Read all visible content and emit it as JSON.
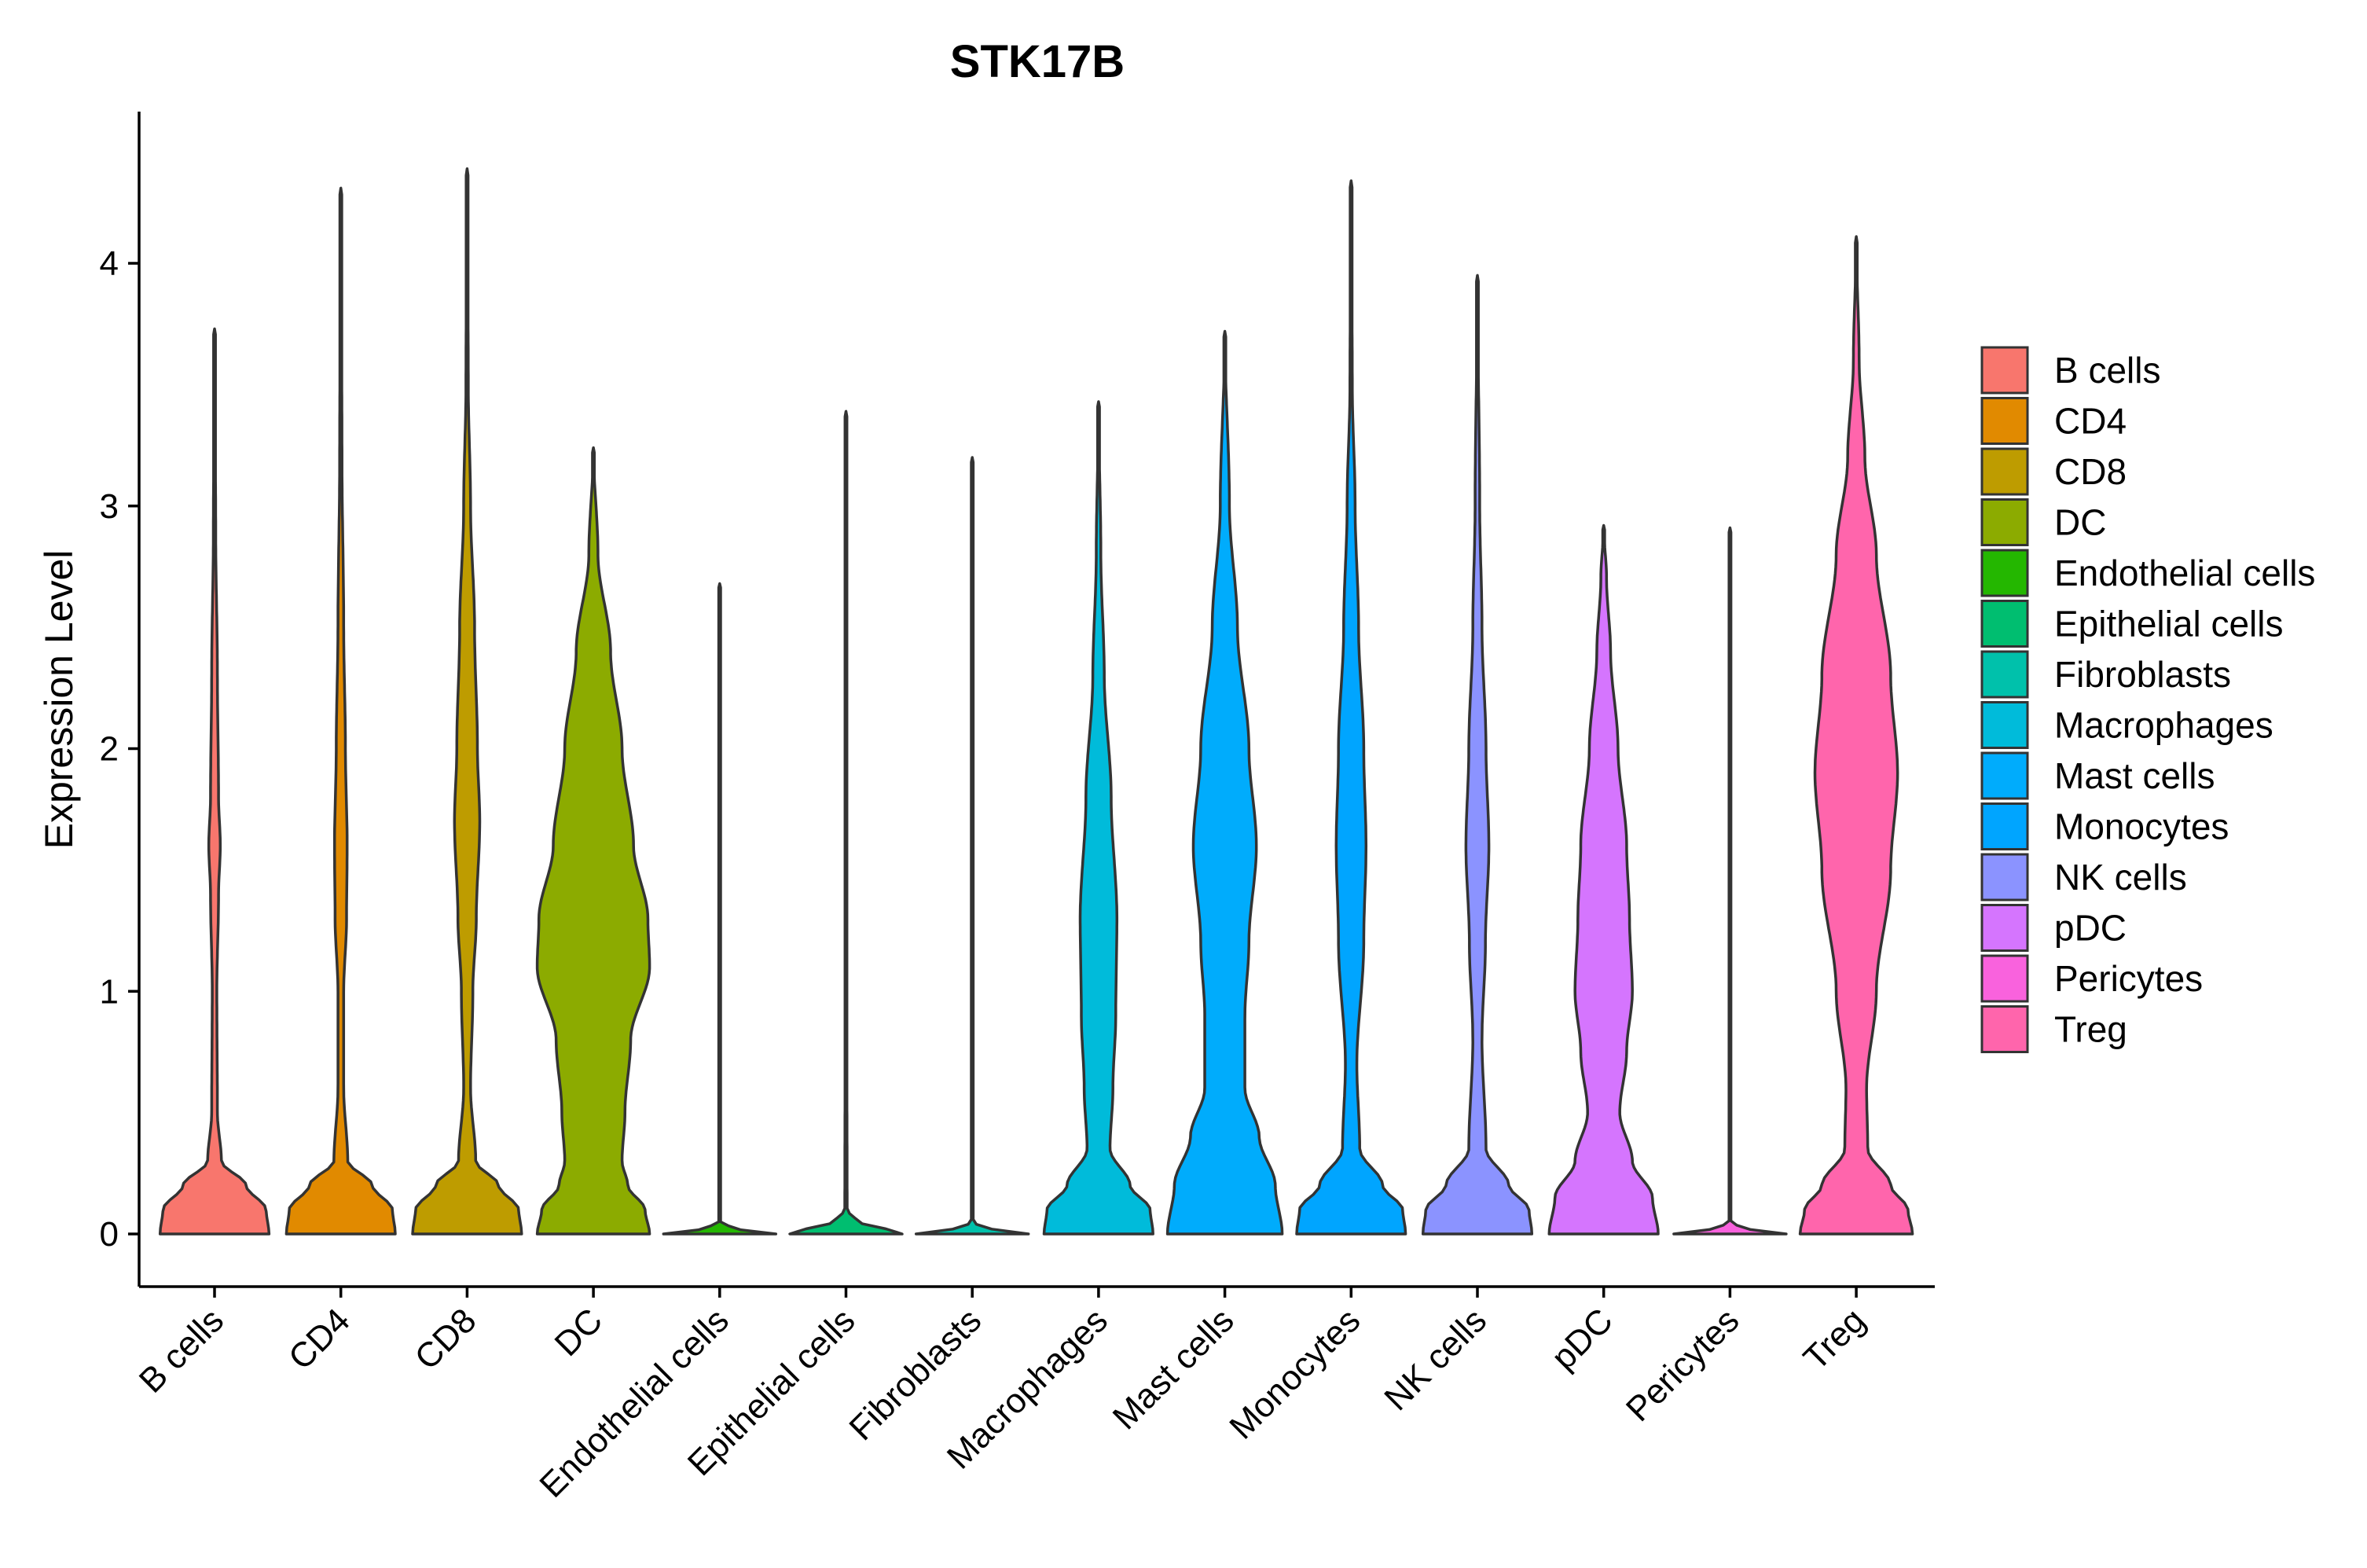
{
  "chart_data": {
    "type": "violin",
    "title": "STK17B",
    "xlabel": "",
    "ylabel": "Expression Level",
    "ylim": [
      -0.22,
      4.6
    ],
    "yticks": [
      0,
      1,
      2,
      3,
      4
    ],
    "categories": [
      "B cells",
      "CD4",
      "CD8",
      "DC",
      "Endothelial cells",
      "Epithelial cells",
      "Fibroblasts",
      "Macrophages",
      "Mast cells",
      "Monocytes",
      "NK cells",
      "pDC",
      "Pericytes",
      "Treg"
    ],
    "colors": [
      "#F8766D",
      "#E18A00",
      "#BE9C00",
      "#8CAB00",
      "#24B700",
      "#00BE70",
      "#00C1AB",
      "#00BBDA",
      "#00ACFC",
      "#00A5FF",
      "#8B93FF",
      "#D575FE",
      "#F962DD",
      "#FF65AC"
    ],
    "legend_position": "right",
    "series": [
      {
        "name": "B cells",
        "max": 3.73,
        "profile": [
          [
            0,
            0.95
          ],
          [
            0.1,
            0.9
          ],
          [
            0.2,
            0.55
          ],
          [
            0.3,
            0.12
          ],
          [
            0.5,
            0.05
          ],
          [
            1.0,
            0.04
          ],
          [
            1.4,
            0.07
          ],
          [
            1.6,
            0.1
          ],
          [
            1.8,
            0.07
          ],
          [
            2.3,
            0.05
          ],
          [
            2.9,
            0.02
          ],
          [
            3.73,
            0
          ]
        ]
      },
      {
        "name": "CD4",
        "max": 4.31,
        "profile": [
          [
            0,
            0.95
          ],
          [
            0.1,
            0.9
          ],
          [
            0.2,
            0.55
          ],
          [
            0.3,
            0.12
          ],
          [
            0.6,
            0.05
          ],
          [
            1.0,
            0.05
          ],
          [
            1.3,
            0.1
          ],
          [
            1.6,
            0.11
          ],
          [
            2.0,
            0.08
          ],
          [
            2.5,
            0.05
          ],
          [
            3.2,
            0.02
          ],
          [
            4.31,
            0
          ]
        ]
      },
      {
        "name": "CD8",
        "max": 4.39,
        "profile": [
          [
            0,
            0.95
          ],
          [
            0.1,
            0.9
          ],
          [
            0.2,
            0.55
          ],
          [
            0.3,
            0.15
          ],
          [
            0.6,
            0.06
          ],
          [
            1.0,
            0.1
          ],
          [
            1.3,
            0.16
          ],
          [
            1.7,
            0.22
          ],
          [
            2.0,
            0.18
          ],
          [
            2.5,
            0.13
          ],
          [
            3.0,
            0.06
          ],
          [
            3.5,
            0.02
          ],
          [
            4.39,
            0
          ]
        ]
      },
      {
        "name": "DC",
        "max": 3.24,
        "profile": [
          [
            0,
            0.98
          ],
          [
            0.1,
            0.9
          ],
          [
            0.2,
            0.6
          ],
          [
            0.3,
            0.5
          ],
          [
            0.5,
            0.55
          ],
          [
            0.8,
            0.65
          ],
          [
            1.1,
            0.98
          ],
          [
            1.3,
            0.95
          ],
          [
            1.6,
            0.7
          ],
          [
            2.0,
            0.5
          ],
          [
            2.4,
            0.3
          ],
          [
            2.8,
            0.08
          ],
          [
            3.24,
            0
          ]
        ]
      },
      {
        "name": "Endothelial cells",
        "max": 2.68,
        "profile": [
          [
            0,
            0.98
          ],
          [
            0.01,
            0.4
          ],
          [
            0.05,
            0.01
          ],
          [
            2.68,
            0
          ]
        ]
      },
      {
        "name": "Epithelial cells",
        "max": 3.39,
        "profile": [
          [
            0,
            0.98
          ],
          [
            0.02,
            0.7
          ],
          [
            0.05,
            0.2
          ],
          [
            0.1,
            0.02
          ],
          [
            1.2,
            0.01
          ],
          [
            3.39,
            0
          ]
        ]
      },
      {
        "name": "Fibroblasts",
        "max": 3.2,
        "profile": [
          [
            0,
            0.98
          ],
          [
            0.01,
            0.4
          ],
          [
            0.05,
            0.01
          ],
          [
            3.2,
            0
          ]
        ]
      },
      {
        "name": "Macrophages",
        "max": 3.43,
        "profile": [
          [
            0,
            0.95
          ],
          [
            0.1,
            0.9
          ],
          [
            0.2,
            0.55
          ],
          [
            0.35,
            0.2
          ],
          [
            0.6,
            0.25
          ],
          [
            0.9,
            0.3
          ],
          [
            1.3,
            0.32
          ],
          [
            1.8,
            0.22
          ],
          [
            2.3,
            0.1
          ],
          [
            2.8,
            0.04
          ],
          [
            3.43,
            0
          ]
        ]
      },
      {
        "name": "Mast cells",
        "max": 3.72,
        "profile": [
          [
            0,
            1.0
          ],
          [
            0.2,
            0.88
          ],
          [
            0.4,
            0.6
          ],
          [
            0.6,
            0.35
          ],
          [
            0.9,
            0.35
          ],
          [
            1.2,
            0.42
          ],
          [
            1.6,
            0.55
          ],
          [
            2.0,
            0.42
          ],
          [
            2.5,
            0.22
          ],
          [
            3.0,
            0.08
          ],
          [
            3.72,
            0
          ]
        ]
      },
      {
        "name": "Monocytes",
        "max": 4.34,
        "profile": [
          [
            0,
            0.95
          ],
          [
            0.1,
            0.9
          ],
          [
            0.2,
            0.55
          ],
          [
            0.35,
            0.15
          ],
          [
            0.7,
            0.1
          ],
          [
            1.2,
            0.22
          ],
          [
            1.6,
            0.26
          ],
          [
            2.0,
            0.22
          ],
          [
            2.5,
            0.13
          ],
          [
            3.0,
            0.07
          ],
          [
            3.5,
            0.02
          ],
          [
            4.34,
            0
          ]
        ]
      },
      {
        "name": "NK cells",
        "max": 3.95,
        "profile": [
          [
            0,
            0.95
          ],
          [
            0.1,
            0.9
          ],
          [
            0.2,
            0.55
          ],
          [
            0.35,
            0.15
          ],
          [
            0.8,
            0.08
          ],
          [
            1.2,
            0.14
          ],
          [
            1.6,
            0.2
          ],
          [
            2.0,
            0.15
          ],
          [
            2.5,
            0.08
          ],
          [
            3.0,
            0.04
          ],
          [
            3.95,
            0
          ]
        ]
      },
      {
        "name": "pDC",
        "max": 2.92,
        "profile": [
          [
            0,
            0.95
          ],
          [
            0.15,
            0.85
          ],
          [
            0.3,
            0.5
          ],
          [
            0.5,
            0.28
          ],
          [
            0.75,
            0.4
          ],
          [
            1.0,
            0.5
          ],
          [
            1.3,
            0.45
          ],
          [
            1.6,
            0.4
          ],
          [
            2.0,
            0.25
          ],
          [
            2.4,
            0.12
          ],
          [
            2.7,
            0.05
          ],
          [
            2.92,
            0
          ]
        ]
      },
      {
        "name": "Pericytes",
        "max": 2.91,
        "profile": [
          [
            0,
            0.98
          ],
          [
            0.01,
            0.4
          ],
          [
            0.05,
            0.01
          ],
          [
            2.91,
            0
          ]
        ]
      },
      {
        "name": "Treg",
        "max": 4.11,
        "profile": [
          [
            0,
            0.98
          ],
          [
            0.1,
            0.9
          ],
          [
            0.2,
            0.6
          ],
          [
            0.35,
            0.2
          ],
          [
            0.6,
            0.18
          ],
          [
            1.0,
            0.35
          ],
          [
            1.5,
            0.6
          ],
          [
            1.9,
            0.72
          ],
          [
            2.3,
            0.6
          ],
          [
            2.8,
            0.35
          ],
          [
            3.2,
            0.15
          ],
          [
            3.6,
            0.05
          ],
          [
            4.11,
            0
          ]
        ]
      }
    ]
  }
}
